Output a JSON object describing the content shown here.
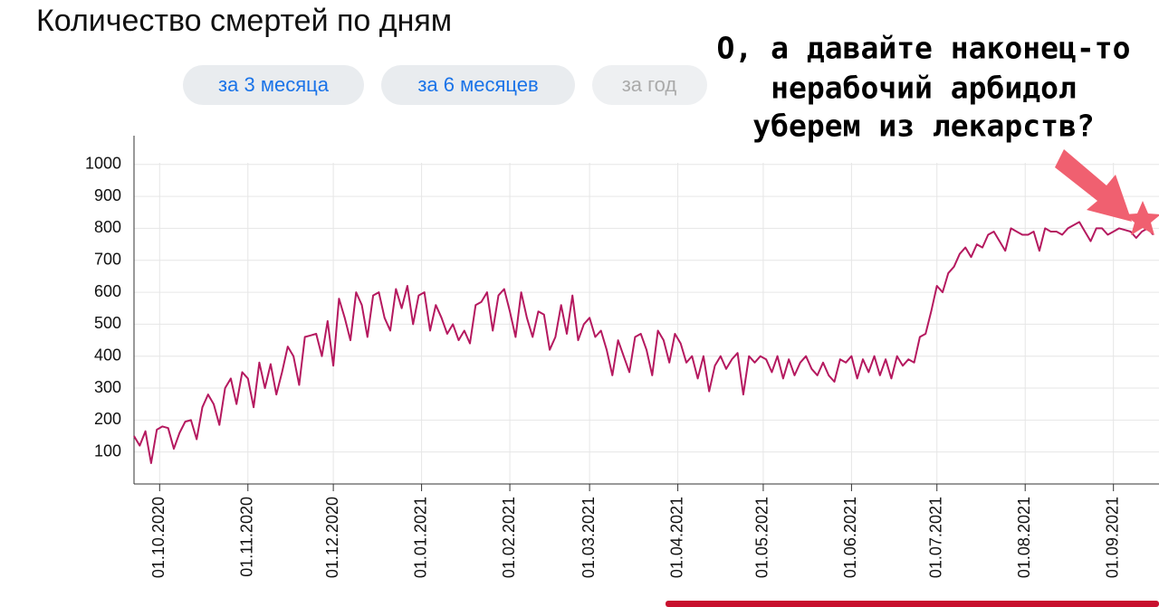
{
  "chart_data": {
    "type": "line",
    "title": "Количество смертей по дням",
    "buttons": [
      "за 3 месяца",
      "за 6 месяцев",
      "за год"
    ],
    "annotation": [
      "О, а давайте наконец-то",
      "нерабочий арбидол",
      "уберем из лекарств?"
    ],
    "xlim": [
      "22.09.2020",
      "17.09.2021"
    ],
    "xticks": [
      "01.10.2020",
      "01.11.2020",
      "01.12.2020",
      "01.01.2021",
      "01.02.2021",
      "01.03.2021",
      "01.04.2021",
      "01.05.2021",
      "01.06.2021",
      "01.07.2021",
      "01.08.2021",
      "01.09.2021"
    ],
    "ylim": [
      0,
      1090
    ],
    "yticks": [
      100,
      200,
      300,
      400,
      500,
      600,
      700,
      800,
      900,
      1000
    ],
    "grid": true,
    "x": [
      "22.09.2020",
      "24.09.2020",
      "26.09.2020",
      "28.09.2020",
      "30.09.2020",
      "02.10.2020",
      "04.10.2020",
      "06.10.2020",
      "08.10.2020",
      "10.10.2020",
      "12.10.2020",
      "14.10.2020",
      "16.10.2020",
      "18.10.2020",
      "20.10.2020",
      "22.10.2020",
      "24.10.2020",
      "26.10.2020",
      "28.10.2020",
      "30.10.2020",
      "01.11.2020",
      "03.11.2020",
      "05.11.2020",
      "07.11.2020",
      "09.11.2020",
      "11.11.2020",
      "13.11.2020",
      "15.11.2020",
      "17.11.2020",
      "19.11.2020",
      "21.11.2020",
      "23.11.2020",
      "25.11.2020",
      "27.11.2020",
      "29.11.2020",
      "01.12.2020",
      "03.12.2020",
      "05.12.2020",
      "07.12.2020",
      "09.12.2020",
      "11.12.2020",
      "13.12.2020",
      "15.12.2020",
      "17.12.2020",
      "19.12.2020",
      "21.12.2020",
      "23.12.2020",
      "25.12.2020",
      "27.12.2020",
      "29.12.2020",
      "31.12.2020",
      "02.01.2021",
      "04.01.2021",
      "06.01.2021",
      "08.01.2021",
      "10.01.2021",
      "12.01.2021",
      "14.01.2021",
      "16.01.2021",
      "18.01.2021",
      "20.01.2021",
      "22.01.2021",
      "24.01.2021",
      "26.01.2021",
      "28.01.2021",
      "30.01.2021",
      "01.02.2021",
      "03.02.2021",
      "05.02.2021",
      "07.02.2021",
      "09.02.2021",
      "11.02.2021",
      "13.02.2021",
      "15.02.2021",
      "17.02.2021",
      "19.02.2021",
      "21.02.2021",
      "23.02.2021",
      "25.02.2021",
      "27.02.2021",
      "01.03.2021",
      "03.03.2021",
      "05.03.2021",
      "07.03.2021",
      "09.03.2021",
      "11.03.2021",
      "13.03.2021",
      "15.03.2021",
      "17.03.2021",
      "19.03.2021",
      "21.03.2021",
      "23.03.2021",
      "25.03.2021",
      "27.03.2021",
      "29.03.2021",
      "31.03.2021",
      "02.04.2021",
      "04.04.2021",
      "06.04.2021",
      "08.04.2021",
      "10.04.2021",
      "12.04.2021",
      "14.04.2021",
      "16.04.2021",
      "18.04.2021",
      "20.04.2021",
      "22.04.2021",
      "24.04.2021",
      "26.04.2021",
      "28.04.2021",
      "30.04.2021",
      "02.05.2021",
      "04.05.2021",
      "06.05.2021",
      "08.05.2021",
      "10.05.2021",
      "12.05.2021",
      "14.05.2021",
      "16.05.2021",
      "18.05.2021",
      "20.05.2021",
      "22.05.2021",
      "24.05.2021",
      "26.05.2021",
      "28.05.2021",
      "30.05.2021",
      "01.06.2021",
      "03.06.2021",
      "05.06.2021",
      "07.06.2021",
      "09.06.2021",
      "11.06.2021",
      "13.06.2021",
      "15.06.2021",
      "17.06.2021",
      "19.06.2021",
      "21.06.2021",
      "23.06.2021",
      "25.06.2021",
      "27.06.2021",
      "29.06.2021",
      "01.07.2021",
      "03.07.2021",
      "05.07.2021",
      "07.07.2021",
      "09.07.2021",
      "11.07.2021",
      "13.07.2021",
      "15.07.2021",
      "17.07.2021",
      "19.07.2021",
      "21.07.2021",
      "23.07.2021",
      "25.07.2021",
      "27.07.2021",
      "29.07.2021",
      "31.07.2021",
      "02.08.2021",
      "04.08.2021",
      "06.08.2021",
      "08.08.2021",
      "10.08.2021",
      "12.08.2021",
      "14.08.2021",
      "16.08.2021",
      "18.08.2021",
      "20.08.2021",
      "22.08.2021",
      "24.08.2021",
      "26.08.2021",
      "28.08.2021",
      "30.08.2021",
      "01.09.2021",
      "03.09.2021",
      "05.09.2021",
      "07.09.2021",
      "09.09.2021",
      "11.09.2021",
      "13.09.2021",
      "15.09.2021"
    ],
    "color": "#b5195f",
    "values": [
      150,
      120,
      165,
      65,
      170,
      180,
      175,
      110,
      160,
      195,
      200,
      140,
      240,
      280,
      250,
      185,
      300,
      330,
      250,
      350,
      330,
      240,
      380,
      300,
      375,
      280,
      350,
      430,
      400,
      310,
      460,
      465,
      470,
      400,
      510,
      370,
      580,
      520,
      450,
      600,
      560,
      460,
      590,
      600,
      520,
      480,
      610,
      550,
      620,
      500,
      590,
      600,
      480,
      560,
      520,
      470,
      500,
      450,
      480,
      440,
      560,
      570,
      600,
      480,
      590,
      610,
      540,
      460,
      600,
      520,
      460,
      540,
      530,
      420,
      460,
      560,
      470,
      590,
      450,
      500,
      520,
      460,
      480,
      420,
      340,
      450,
      400,
      350,
      460,
      470,
      420,
      340,
      480,
      450,
      380,
      470,
      440,
      380,
      400,
      330,
      400,
      290,
      370,
      400,
      360,
      390,
      410,
      280,
      400,
      380,
      400,
      390,
      350,
      400,
      330,
      390,
      340,
      380,
      400,
      360,
      340,
      380,
      340,
      320,
      390,
      380,
      400,
      330,
      390,
      350,
      400,
      340,
      390,
      330,
      400,
      370,
      390,
      380,
      460,
      470,
      540,
      620,
      600,
      660,
      680,
      720,
      740,
      710,
      750,
      740,
      780,
      790,
      760,
      730,
      800,
      790,
      780,
      780,
      790,
      730,
      800,
      790,
      790,
      780,
      800,
      810,
      820,
      790,
      760,
      800,
      800,
      780,
      790,
      800,
      795,
      790,
      770,
      790,
      800,
      780
    ]
  }
}
